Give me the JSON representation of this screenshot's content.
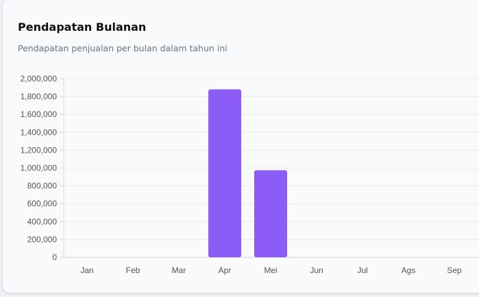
{
  "card": {
    "title": "Pendapatan Bulanan",
    "subtitle": "Pendapatan penjualan per bulan dalam tahun ini"
  },
  "chart_data": {
    "type": "bar",
    "categories": [
      "Jan",
      "Feb",
      "Mar",
      "Apr",
      "Mei",
      "Jun",
      "Jul",
      "Ags",
      "Sep"
    ],
    "values": [
      0,
      0,
      0,
      1880000,
      975000,
      0,
      0,
      0,
      0
    ],
    "ylim": [
      0,
      2000000
    ],
    "yticks": [
      0,
      200000,
      400000,
      600000,
      800000,
      1000000,
      1200000,
      1400000,
      1600000,
      1800000,
      2000000
    ],
    "ytick_labels": [
      "0",
      "200,000",
      "400,000",
      "600,000",
      "800,000",
      "1,000,000",
      "1,200,000",
      "1,400,000",
      "1,600,000",
      "1,800,000",
      "2,000,000"
    ],
    "grid": true,
    "bar_color": "#8b5cf6"
  }
}
